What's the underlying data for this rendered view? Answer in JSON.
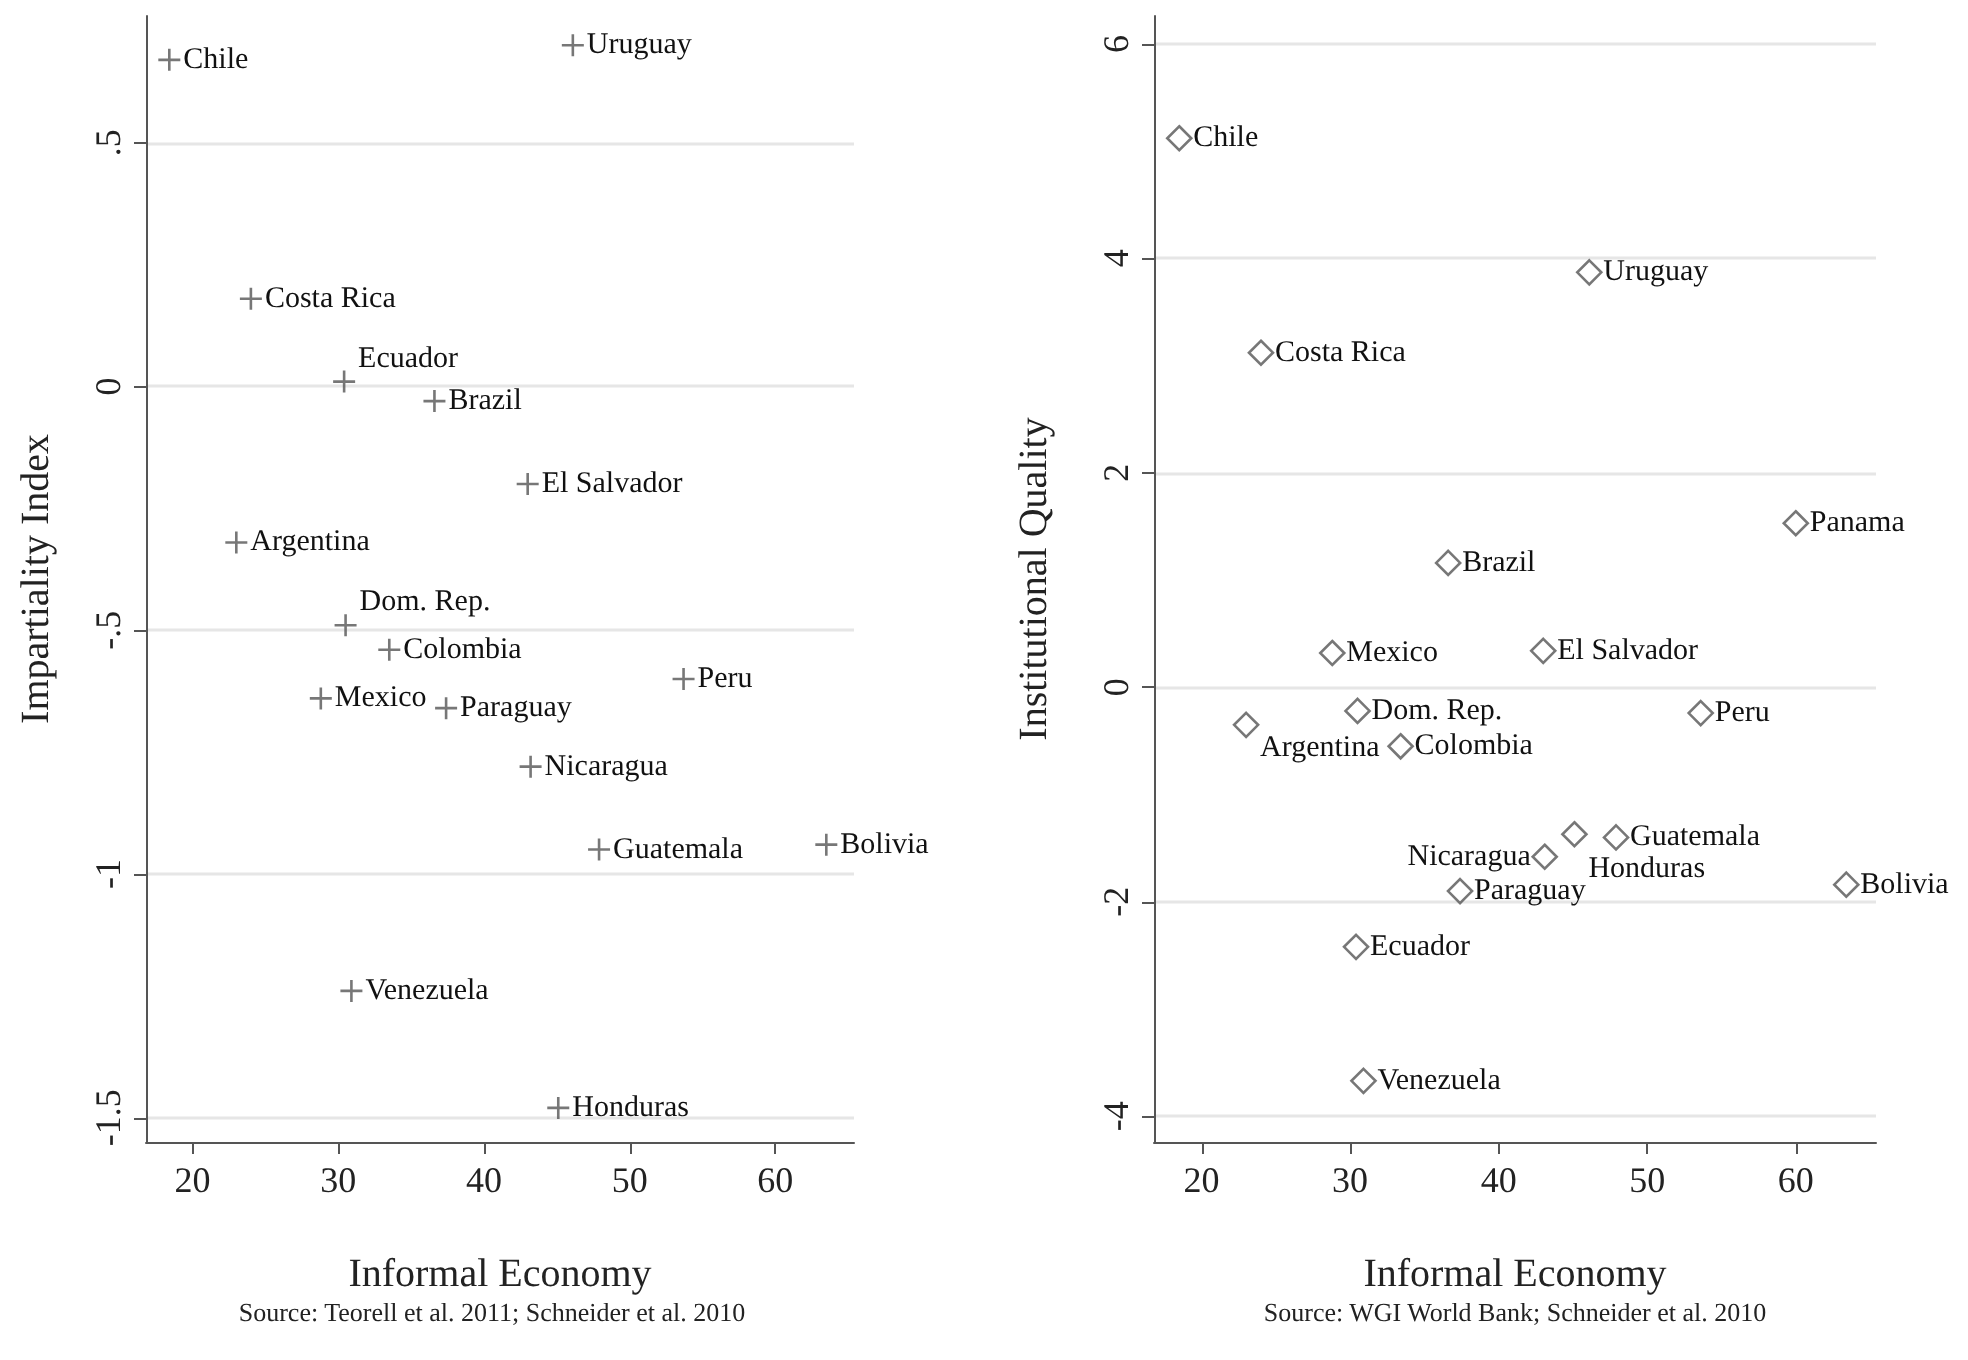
{
  "chart_data": [
    {
      "type": "scatter",
      "xlabel": "Informal Economy",
      "ylabel": "Impartiality Index",
      "xlim": [
        16.8,
        65.4
      ],
      "ylim": [
        -1.55,
        0.76
      ],
      "xticks": [
        20,
        30,
        40,
        50,
        60
      ],
      "yticks": [
        {
          "value": 0.5,
          "label": ".5"
        },
        0,
        {
          "value": -0.5,
          "label": "-.5"
        },
        -1,
        {
          "value": -1.5,
          "label": "-1.5"
        }
      ],
      "grid": "y",
      "marker": "cross",
      "series": [
        {
          "color": "#555555",
          "x": [
            18.4,
            46.1,
            24.0,
            30.4,
            36.6,
            43.0,
            23.0,
            30.5,
            33.5,
            28.8,
            37.4,
            53.7,
            43.2,
            47.9,
            63.5,
            30.9,
            45.1
          ],
          "values": [
            0.67,
            0.7,
            0.18,
            0.01,
            -0.03,
            -0.2,
            -0.32,
            -0.49,
            -0.54,
            -0.64,
            -0.66,
            -0.6,
            -0.78,
            -0.95,
            -0.94,
            -1.24,
            -1.48
          ]
        }
      ],
      "annotations": [
        {
          "text": "Chile",
          "x": 18.4,
          "y": 0.67
        },
        {
          "text": "Uruguay",
          "x": 46.1,
          "y": 0.7
        },
        {
          "text": "Costa Rica",
          "x": 24.0,
          "y": 0.18
        },
        {
          "text": "Ecuador",
          "x": 30.4,
          "y": 0.01
        },
        {
          "text": "Brazil",
          "x": 36.6,
          "y": -0.03
        },
        {
          "text": "El Salvador",
          "x": 43.0,
          "y": -0.2
        },
        {
          "text": "Argentina",
          "x": 23.0,
          "y": -0.32
        },
        {
          "text": "Dom. Rep.",
          "x": 30.5,
          "y": -0.49
        },
        {
          "text": "Colombia",
          "x": 33.5,
          "y": -0.54
        },
        {
          "text": "Mexico",
          "x": 28.8,
          "y": -0.64
        },
        {
          "text": "Paraguay",
          "x": 37.4,
          "y": -0.66
        },
        {
          "text": "Peru",
          "x": 53.7,
          "y": -0.6
        },
        {
          "text": "Nicaragua",
          "x": 43.2,
          "y": -0.78
        },
        {
          "text": "Guatemala",
          "x": 47.9,
          "y": -0.95
        },
        {
          "text": "Bolivia",
          "x": 63.5,
          "y": -0.94
        },
        {
          "text": "Venezuela",
          "x": 30.9,
          "y": -1.24
        },
        {
          "text": "Honduras",
          "x": 45.1,
          "y": -1.48
        },
        "Source: Teorell et al. 2011; Schneider et al. 2010"
      ]
    },
    {
      "type": "scatter",
      "xlabel": "Informal Economy",
      "ylabel": "Institutional Quality",
      "xlim": [
        16.8,
        65.4
      ],
      "ylim": [
        -4.24,
        6.26
      ],
      "xticks": [
        20,
        30,
        40,
        50,
        60
      ],
      "yticks": [
        -4,
        -2,
        0,
        2,
        4,
        6
      ],
      "grid": "y",
      "marker": "diamond",
      "series": [
        {
          "color": "#555555",
          "x": [
            18.5,
            46.1,
            24.0,
            60.0,
            36.6,
            28.8,
            43.0,
            30.5,
            23.0,
            33.4,
            53.6,
            45.1,
            47.9,
            43.1,
            37.4,
            63.4,
            30.4,
            30.9
          ],
          "values": [
            5.12,
            3.87,
            3.12,
            1.53,
            1.16,
            0.32,
            0.34,
            -0.22,
            -0.35,
            -0.55,
            -0.24,
            -1.37,
            -1.4,
            -1.58,
            -1.9,
            -1.84,
            -2.42,
            -3.67
          ]
        }
      ],
      "annotations": [
        {
          "text": "Chile",
          "x": 18.5,
          "y": 5.12
        },
        {
          "text": "Uruguay",
          "x": 46.1,
          "y": 3.87
        },
        {
          "text": "Costa Rica",
          "x": 24.0,
          "y": 3.12
        },
        {
          "text": "Panama",
          "x": 60.0,
          "y": 1.53
        },
        {
          "text": "Brazil",
          "x": 36.6,
          "y": 1.16
        },
        {
          "text": "Mexico",
          "x": 28.8,
          "y": 0.32
        },
        {
          "text": "El Salvador",
          "x": 43.0,
          "y": 0.34
        },
        {
          "text": "Dom. Rep.",
          "x": 30.5,
          "y": -0.22
        },
        {
          "text": "Argentina",
          "x": 23.0,
          "y": -0.35
        },
        {
          "text": "Colombia",
          "x": 33.4,
          "y": -0.55
        },
        {
          "text": "Peru",
          "x": 53.6,
          "y": -0.24
        },
        {
          "text": "Honduras",
          "x": 45.1,
          "y": -1.37
        },
        {
          "text": "Guatemala",
          "x": 47.9,
          "y": -1.4
        },
        {
          "text": "Nicaragua",
          "x": 43.1,
          "y": -1.58
        },
        {
          "text": "Paraguay",
          "x": 37.4,
          "y": -1.9
        },
        {
          "text": "Bolivia",
          "x": 63.4,
          "y": -1.84
        },
        {
          "text": "Ecuador",
          "x": 30.4,
          "y": -2.42
        },
        {
          "text": "Venezuela",
          "x": 30.9,
          "y": -3.67
        },
        "Source: WGI World Bank; Schneider et al. 2010"
      ]
    }
  ]
}
